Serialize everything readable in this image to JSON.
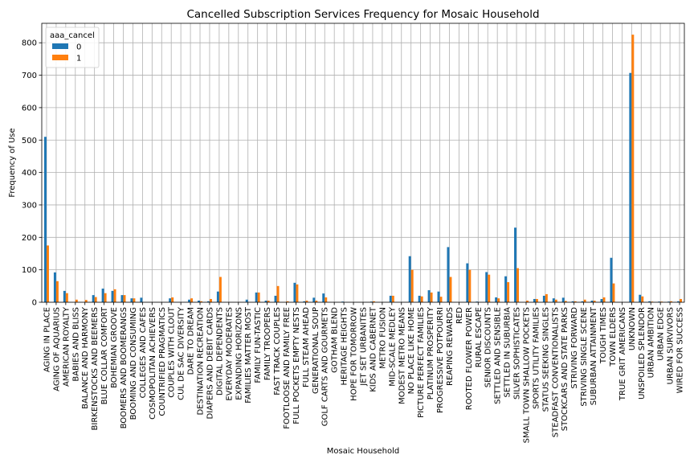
{
  "chart_data": {
    "type": "bar",
    "title": "Cancelled Subscription Services Frequency for Mosaic Household",
    "xlabel": "Mosaic Household",
    "ylabel": "Frequency of Use",
    "ylim": [
      0,
      860
    ],
    "yticks": [
      0,
      100,
      200,
      300,
      400,
      500,
      600,
      700,
      800
    ],
    "grid": true,
    "legend": {
      "title": "aaa_cancel",
      "placement": "top-left"
    },
    "categories": [
      "AGING IN PLACE",
      "AGING OF AQUARIUS",
      "AMERICAN ROYALTY",
      "BABIES AND BLISS",
      "BALANCE AND HARMONY",
      "BIRKENSTOCKS AND BEEMERS",
      "BLUE COLLAR COMFORT",
      "BOHEMIAN GROOVE",
      "BOOMERS AND BOOMERANGS",
      "BOOMING AND CONSUMING",
      "COLLEGES AND CAFES",
      "COSMOPOLITAN ACHIEVERS",
      "COUNTRIFIED PRAGMATICS",
      "COUPLES WITH CLOUT",
      "CUL DE SAC DIVERSITY",
      "DARE TO DREAM",
      "DESTINATION RECREATION",
      "DIAPERS AND DEBIT CARDS",
      "DIGITAL DEPENDENTS",
      "EVERYDAY MODERATES",
      "EXPANDING HORIZONS",
      "FAMILIES MATTER MOST",
      "FAMILY FUN-TASTIC",
      "FAMILY TROOPERS",
      "FAST TRACK COUPLES",
      "FOOTLOOSE AND FAMILY FREE",
      "FULL POCKETS  EMPTY NESTS",
      "FULL STEAM AHEAD",
      "GENERATIONAL SOUP",
      "GOLF CARTS AND GOURMETS",
      "GOTHAM BLEND",
      "HERITAGE HEIGHTS",
      "HOPE FOR TOMORROW",
      "JET SET URBANITES",
      "KIDS AND CABERNET",
      "METRO FUSION",
      "MID-SCALE MEDLEY",
      "MODEST METRO MEANS",
      "NO PLACE LIKE HOME",
      "PICTURE PERFECT FAMILIES",
      "PLATINUM PROSPERITY",
      "PROGRESSIVE POTPOURRI",
      "REAPING REWARDS",
      "RED",
      "ROOTED FLOWER POWER",
      "RURAL ESCAPE",
      "SENIOR DISCOUNTS",
      "SETTLED AND SENSIBLE",
      "SETTLED IN SUBURBIA",
      "SILVER SOPHISTICATES",
      "SMALL TOWN SHALLOW POCKETS",
      "SPORTS UTILITY FAMILIES",
      "STATUS SEEKING SINGLES",
      "STEADFAST CONVENTIONALISTS",
      "STOCKCARS AND STATE PARKS",
      "STRIVING FORWARD",
      "STRIVING SINGLE SCENE",
      "SUBURBAN ATTAINMENT",
      "TOUGH TIMES",
      "TOWN ELDERS",
      "TRUE GRIT AMERICANS",
      "UNKNOWN",
      "UNSPOILED SPLENDOR",
      "URBAN AMBITION",
      "URBAN EDGE",
      "URBAN SURVIVORS",
      "WIRED FOR SUCCESS"
    ],
    "series": [
      {
        "name": "0",
        "color": "#1f77b4",
        "values": [
          510,
          92,
          35,
          0,
          0,
          22,
          42,
          35,
          22,
          12,
          14,
          0,
          0,
          12,
          0,
          8,
          5,
          3,
          33,
          0,
          0,
          8,
          30,
          5,
          20,
          0,
          60,
          3,
          14,
          27,
          0,
          2,
          0,
          0,
          2,
          0,
          20,
          0,
          142,
          20,
          37,
          33,
          170,
          0,
          120,
          2,
          93,
          15,
          80,
          230,
          0,
          10,
          20,
          12,
          14,
          3,
          3,
          5,
          10,
          137,
          0,
          707,
          23,
          3,
          2,
          2,
          3
        ]
      },
      {
        "name": "1",
        "color": "#ff7f0e",
        "values": [
          175,
          65,
          28,
          8,
          7,
          16,
          28,
          40,
          22,
          12,
          0,
          0,
          0,
          15,
          0,
          12,
          3,
          10,
          78,
          0,
          0,
          0,
          30,
          5,
          50,
          3,
          55,
          5,
          5,
          15,
          0,
          0,
          0,
          0,
          3,
          0,
          20,
          0,
          100,
          18,
          30,
          17,
          78,
          0,
          100,
          0,
          85,
          12,
          62,
          105,
          5,
          10,
          25,
          8,
          4,
          3,
          8,
          5,
          15,
          58,
          0,
          825,
          18,
          2,
          2,
          3,
          10
        ]
      }
    ]
  }
}
